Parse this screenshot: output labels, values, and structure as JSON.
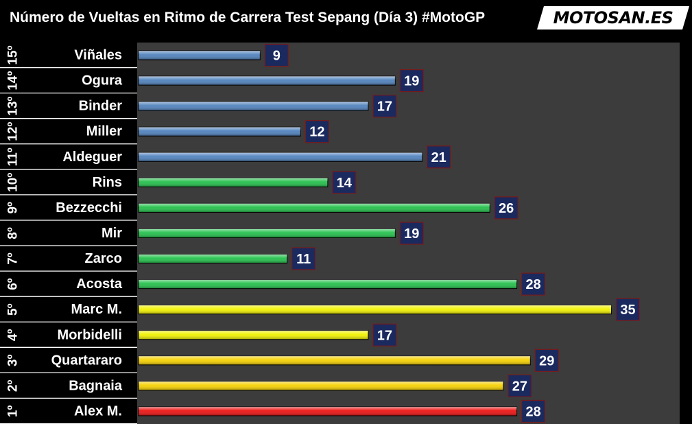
{
  "title": "Número de Vueltas en Ritmo de Carrera Test Sepang (Día 3) #MotoGP",
  "logo": {
    "text": "MOTOSAN.ES",
    "accent_color": "#e01010"
  },
  "chart_data": {
    "type": "bar",
    "orientation": "horizontal",
    "title": "Número de Vueltas en Ritmo de Carrera Test Sepang (Día 3) #MotoGP",
    "xlim": [
      0,
      40
    ],
    "grid": false,
    "legend": "none",
    "rows": [
      {
        "rank": "15º",
        "rider": "Viñales",
        "value": 9,
        "color": "#4f81bd"
      },
      {
        "rank": "14º",
        "rider": "Ogura",
        "value": 19,
        "color": "#4f81bd"
      },
      {
        "rank": "13º",
        "rider": "Binder",
        "value": 17,
        "color": "#4f81bd"
      },
      {
        "rank": "12º",
        "rider": "Miller",
        "value": 12,
        "color": "#4f81bd"
      },
      {
        "rank": "11º",
        "rider": "Aldeguer",
        "value": 21,
        "color": "#4f81bd"
      },
      {
        "rank": "10º",
        "rider": "Rins",
        "value": 14,
        "color": "#22c04a"
      },
      {
        "rank": "9º",
        "rider": "Bezzecchi",
        "value": 26,
        "color": "#22c04a"
      },
      {
        "rank": "8º",
        "rider": "Mir",
        "value": 19,
        "color": "#22c04a"
      },
      {
        "rank": "7º",
        "rider": "Zarco",
        "value": 11,
        "color": "#22c04a"
      },
      {
        "rank": "6º",
        "rider": "Acosta",
        "value": 28,
        "color": "#22c04a"
      },
      {
        "rank": "5º",
        "rider": "Marc M.",
        "value": 35,
        "color": "#f2f200"
      },
      {
        "rank": "4º",
        "rider": "Morbidelli",
        "value": 17,
        "color": "#f2f200"
      },
      {
        "rank": "3º",
        "rider": "Quartararo",
        "value": 29,
        "color": "#f5d000"
      },
      {
        "rank": "2º",
        "rider": "Bagnaia",
        "value": 27,
        "color": "#f5d000"
      },
      {
        "rank": "1º",
        "rider": "Alex M.",
        "value": 28,
        "color": "#ee1111"
      }
    ],
    "label_box_color": "#1b2a5e",
    "plot_background": "#3c3c3c"
  }
}
